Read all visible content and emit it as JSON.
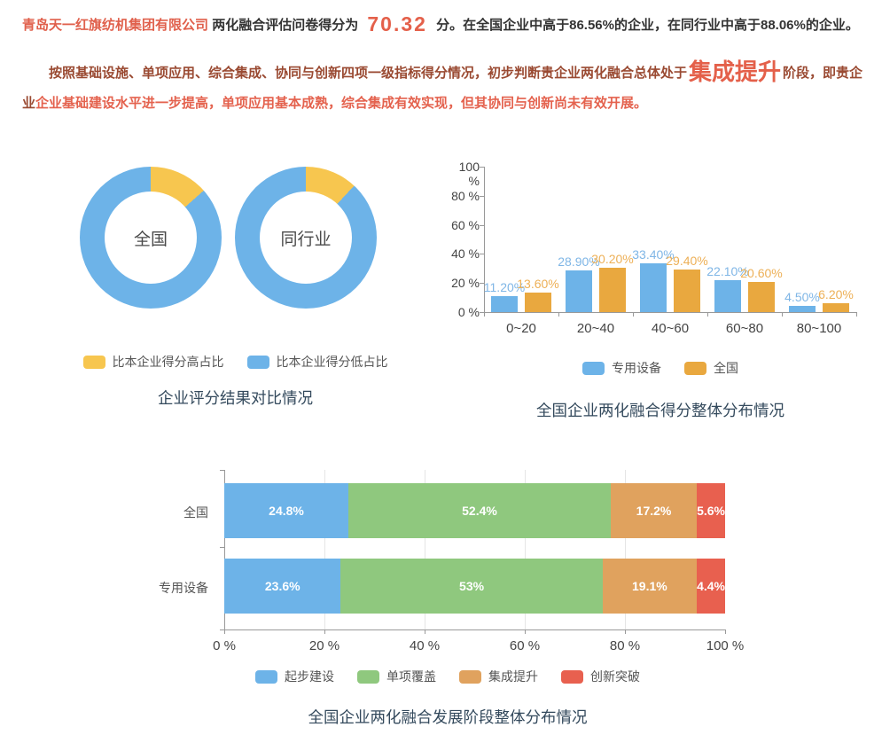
{
  "header": {
    "company": "青岛天一红旗纺机集团有限公司",
    "score_prefix": "两化融合评估问卷得分为",
    "score": "70.32",
    "score_suffix": "分。在全国企业中高于86.56%的企业，在同行业中高于88.06%的企业。",
    "analysis_part1": "按照基础设施、单项应用、综合集成、协同与创新四项一级指标得分情况，初步判断贵企业两化融合总体处于",
    "analysis_stage": "集成提升",
    "analysis_part2": "阶段，即贵企业",
    "analysis_part3": "企业基础建设水平进一步提高，单项应用基本成熟，综合集成有效实现，但其协同与创新尚未有效开展。"
  },
  "colors": {
    "highlight_red": "#e4604a",
    "dark_red": "#9a4a32",
    "bright_red": "#e4624e",
    "title": "#33495c",
    "blue": "#6db3e8",
    "yellow": "#f7c64f",
    "orange": "#e9a83f",
    "green": "#8fc87e",
    "tan": "#e0a25e",
    "red": "#e8604f"
  },
  "chart_data": [
    {
      "type": "pie",
      "title": "企业评分结果对比情况",
      "donuts": [
        {
          "label": "全国",
          "higher_pct": 13.44,
          "lower_pct": 86.56
        },
        {
          "label": "同行业",
          "higher_pct": 11.94,
          "lower_pct": 88.06
        }
      ],
      "legend": [
        {
          "label": "比本企业得分高占比",
          "color": "#f7c64f"
        },
        {
          "label": "比本企业得分低占比",
          "color": "#6db3e8"
        }
      ]
    },
    {
      "type": "bar",
      "title": "全国企业两化融合得分整体分布情况",
      "categories": [
        "0~20",
        "20~40",
        "40~60",
        "60~80",
        "80~100"
      ],
      "series": [
        {
          "name": "专用设备",
          "color": "#6db3e8",
          "label_color": "#7fb6e6",
          "values": [
            11.2,
            28.9,
            33.4,
            22.1,
            4.5
          ],
          "labels": [
            "11.20%",
            "28.90%",
            "33.40%",
            "22.10%",
            "4.50%"
          ]
        },
        {
          "name": "全国",
          "color": "#e9a83f",
          "label_color": "#edb057",
          "values": [
            13.6,
            30.2,
            29.4,
            20.6,
            6.2
          ],
          "labels": [
            "13.60%",
            "30.20%",
            "29.40%",
            "20.60%",
            "6.20%"
          ]
        }
      ],
      "ylim": [
        0,
        100
      ],
      "yticks": [
        "100 %",
        "80 %",
        "60 %",
        "40 %",
        "20 %",
        "0 %"
      ],
      "legend_position": "bottom"
    },
    {
      "type": "bar",
      "stacked": true,
      "horizontal": true,
      "title": "全国企业两化融合发展阶段整体分布情况",
      "rows": [
        {
          "label": "全国",
          "values": [
            24.8,
            52.4,
            17.2,
            5.6
          ],
          "labels": [
            "24.8%",
            "52.4%",
            "17.2%",
            "5.6%"
          ]
        },
        {
          "label": "专用设备",
          "values": [
            23.6,
            53,
            19.1,
            4.4
          ],
          "labels": [
            "23.6%",
            "53%",
            "19.1%",
            "4.4%"
          ]
        }
      ],
      "segments": [
        {
          "name": "起步建设",
          "color": "#6db3e8"
        },
        {
          "name": "单项覆盖",
          "color": "#8fc87e"
        },
        {
          "name": "集成提升",
          "color": "#e0a25e"
        },
        {
          "name": "创新突破",
          "color": "#e8604f"
        }
      ],
      "xlim": [
        0,
        100
      ],
      "xticks": [
        "0 %",
        "20 %",
        "40 %",
        "60 %",
        "80 %",
        "100 %"
      ],
      "grid": true,
      "legend_position": "bottom"
    }
  ]
}
